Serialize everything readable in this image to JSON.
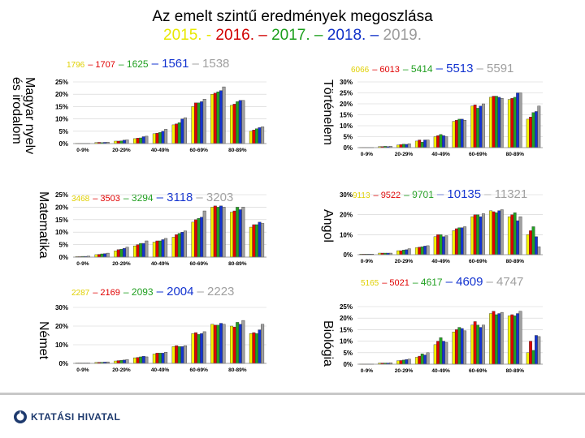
{
  "title": {
    "line1": "Az emelt szintű eredmények megoszlása",
    "years": [
      {
        "text": "2015. -",
        "color": "#e8e800"
      },
      {
        "text": " 2016. –",
        "color": "#d10000"
      },
      {
        "text": " 2017. –",
        "color": "#1a9e1a"
      },
      {
        "text": " 2018. –",
        "color": "#1030c8"
      },
      {
        "text": " 2019.",
        "color": "#9a9a9a"
      }
    ]
  },
  "year_colors": [
    "#f5f500",
    "#e00000",
    "#22a022",
    "#1434d0",
    "#a0a0a0"
  ],
  "logo": {
    "text": "KTATÁSI HIVATAL"
  },
  "charts": [
    {
      "id": "magyar",
      "subject": "Magyar nyelv és irodalom",
      "subject_lines": [
        "Magyar nyelv",
        "és irodalom"
      ],
      "counts": [
        "1796",
        "– 1707",
        "– 1625",
        "– 1561",
        "– 1538"
      ],
      "chart_data": {
        "type": "bar",
        "categories": [
          "0-9%",
          "20-29%",
          "40-49%",
          "60-69%",
          "80-89%"
        ],
        "y_ticks": [
          "0%",
          "5%",
          "10%",
          "15%",
          "20%",
          "25%"
        ],
        "ylim": [
          0,
          25
        ],
        "values": [
          [
            0.1,
            0.1,
            0.1,
            0.1,
            0.1
          ],
          [
            0.4,
            0.5,
            0.4,
            0.5,
            0.6
          ],
          [
            1,
            1,
            1.1,
            1.4,
            1.5
          ],
          [
            2,
            2.2,
            2.3,
            2.8,
            3
          ],
          [
            4,
            4.2,
            4.5,
            5,
            5.8
          ],
          [
            7.6,
            8,
            8.5,
            10,
            10.5
          ],
          [
            15,
            16.5,
            16.5,
            17,
            18
          ],
          [
            20,
            20.5,
            21,
            21.5,
            23
          ],
          [
            15.5,
            16,
            17,
            17.5,
            17.5
          ],
          [
            5,
            5.5,
            6,
            6.5,
            6.8
          ]
        ]
      }
    },
    {
      "id": "tortenelem",
      "subject": "Történelem",
      "counts": [
        "6066",
        "– 6013",
        "– 5414",
        "– 5513",
        "– 5591"
      ],
      "chart_data": {
        "type": "bar",
        "categories": [
          "0-9%",
          "20-29%",
          "40-49%",
          "60-69%",
          "80-89%"
        ],
        "y_ticks": [
          "0%",
          "5%",
          "10%",
          "15%",
          "20%",
          "25%",
          "30%"
        ],
        "ylim": [
          0,
          30
        ],
        "values": [
          [
            0.1,
            0.1,
            0.1,
            0.1,
            0.1
          ],
          [
            0.5,
            0.5,
            0.6,
            0.5,
            0.6
          ],
          [
            1.2,
            1.4,
            1.6,
            1.5,
            1.8
          ],
          [
            3,
            3.5,
            2.5,
            3.5,
            3.5
          ],
          [
            5,
            5.5,
            6,
            5.5,
            5
          ],
          [
            12,
            12.5,
            13,
            13,
            12.5
          ],
          [
            19,
            19.5,
            18,
            19,
            20
          ],
          [
            23,
            23.5,
            23.5,
            23,
            22.5
          ],
          [
            22,
            22.5,
            23,
            25,
            25
          ],
          [
            13,
            14,
            16,
            16.5,
            19
          ]
        ]
      }
    },
    {
      "id": "matematika",
      "subject": "Matematika",
      "counts": [
        "3468",
        "– 3503",
        "– 3294",
        "– 3118",
        "– 3203"
      ],
      "chart_data": {
        "type": "bar",
        "categories": [
          "0-9%",
          "20-29%",
          "40-49%",
          "60-69%",
          "80-89%"
        ],
        "y_ticks": [
          "0%",
          "5%",
          "10%",
          "15%",
          "20%",
          "25%"
        ],
        "ylim": [
          0,
          25
        ],
        "values": [
          [
            0.2,
            0.2,
            0.3,
            0.3,
            0.4
          ],
          [
            1,
            1.1,
            1.3,
            1.4,
            1.6
          ],
          [
            2.5,
            3,
            3.2,
            3.5,
            4
          ],
          [
            4.5,
            5,
            5.5,
            5.5,
            6.5
          ],
          [
            6,
            6.5,
            6.5,
            7,
            7.5
          ],
          [
            8,
            9,
            9.5,
            10,
            10.5
          ],
          [
            14,
            15,
            15.5,
            16,
            18.5
          ],
          [
            20,
            20.5,
            20,
            20.5,
            20
          ],
          [
            18,
            18.5,
            20,
            19,
            20
          ],
          [
            12,
            13,
            13,
            14,
            13.5
          ]
        ]
      }
    },
    {
      "id": "angol",
      "subject": "Angol",
      "counts": [
        "9113",
        "– 9522",
        "– 9701",
        "– 10135",
        "– 11321"
      ],
      "chart_data": {
        "type": "bar",
        "categories": [
          "0-9%",
          "20-29%",
          "40-49%",
          "60-69%",
          "80-89%"
        ],
        "y_ticks": [
          "0%",
          "10%",
          "20%",
          "30%"
        ],
        "ylim": [
          0,
          30
        ],
        "values": [
          [
            0.3,
            0.3,
            0.3,
            0.3,
            0.3
          ],
          [
            0.8,
            0.8,
            0.8,
            0.8,
            0.8
          ],
          [
            2,
            2,
            2.3,
            2.5,
            3
          ],
          [
            3.5,
            3.8,
            4,
            4.3,
            4.5
          ],
          [
            9,
            10,
            10,
            9,
            9.5
          ],
          [
            12,
            13,
            13.5,
            13.5,
            14
          ],
          [
            19,
            20,
            20,
            19,
            20.5
          ],
          [
            22,
            21.5,
            21,
            22,
            22.5
          ],
          [
            19,
            20,
            21,
            17,
            19
          ],
          [
            10,
            12,
            14,
            9,
            4
          ]
        ]
      }
    },
    {
      "id": "nemet",
      "subject": "Német",
      "counts": [
        "2287",
        "– 2169",
        "– 2093",
        "– 2004",
        "– 2223"
      ],
      "chart_data": {
        "type": "bar",
        "categories": [
          "0-9%",
          "20-29%",
          "40-49%",
          "60-69%",
          "80-89%"
        ],
        "y_ticks": [
          "0%",
          "10%",
          "20%",
          "30%"
        ],
        "ylim": [
          0,
          30
        ],
        "values": [
          [
            0.2,
            0.2,
            0.2,
            0.2,
            0.2
          ],
          [
            0.5,
            0.6,
            0.6,
            0.7,
            0.8
          ],
          [
            1.3,
            1.5,
            1.6,
            1.8,
            2
          ],
          [
            3,
            3.2,
            3.5,
            3.8,
            3.5
          ],
          [
            5,
            5.5,
            5.5,
            5.5,
            6
          ],
          [
            9,
            9.5,
            9,
            9,
            9.5
          ],
          [
            16,
            16.5,
            15.5,
            16,
            17
          ],
          [
            21,
            20.5,
            20.5,
            21.5,
            21
          ],
          [
            20,
            19.5,
            22,
            21,
            23
          ],
          [
            16,
            16.5,
            16,
            18,
            21
          ]
        ]
      }
    },
    {
      "id": "biologia",
      "subject": "Biológia",
      "counts": [
        "5165",
        "– 5021",
        "– 4617",
        "– 4609",
        "– 4747"
      ],
      "chart_data": {
        "type": "bar",
        "categories": [
          "0-9%",
          "20-29%",
          "40-49%",
          "60-69%",
          "80-89%"
        ],
        "y_ticks": [
          "0%",
          "5%",
          "10%",
          "15%",
          "20%",
          "25%"
        ],
        "ylim": [
          0,
          25
        ],
        "values": [
          [
            0.1,
            0.1,
            0.1,
            0.1,
            0.1
          ],
          [
            0.5,
            0.5,
            0.5,
            0.5,
            0.6
          ],
          [
            1.5,
            1.6,
            1.8,
            2,
            2.2
          ],
          [
            3,
            3.5,
            4.5,
            4,
            5
          ],
          [
            8.5,
            10,
            11.5,
            10,
            9.5
          ],
          [
            14,
            15,
            16,
            15.5,
            14.5
          ],
          [
            17,
            18.5,
            17,
            16,
            17
          ],
          [
            22,
            23,
            21.5,
            22,
            22.5
          ],
          [
            21,
            21.5,
            21,
            22,
            23
          ],
          [
            5,
            10,
            6,
            12.5,
            12
          ]
        ]
      }
    }
  ]
}
